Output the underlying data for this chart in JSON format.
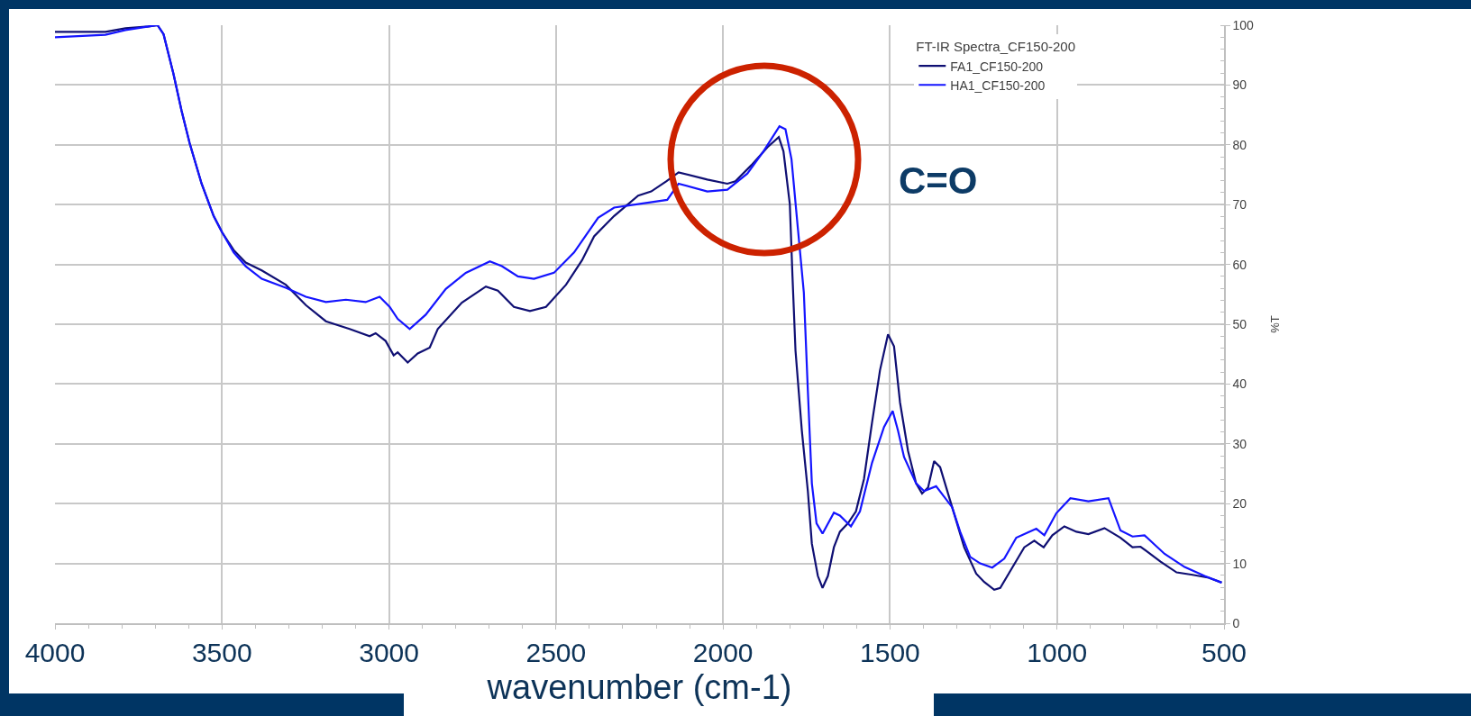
{
  "chart_data": {
    "type": "line",
    "xlabel": "wavenumber (cm-1)",
    "ylabel": "%T",
    "legend_title": "FT-IR Spectra_CF150-200",
    "legend": "top right",
    "grid": true,
    "annotations": [
      "C=O"
    ],
    "xlim": [
      4000,
      500
    ],
    "xticks": [
      4000,
      3500,
      3000,
      2500,
      2000,
      1500,
      1000,
      500
    ],
    "ylim": [
      0,
      100
    ],
    "yticks": [
      0,
      10,
      20,
      30,
      40,
      50,
      60,
      70,
      80,
      90,
      100
    ],
    "series": [
      {
        "name": "FA1_CF150-200",
        "color": "#0f0f73",
        "x": [
          4000,
          3849,
          3789,
          3720,
          3693,
          3675,
          3645,
          3621,
          3597,
          3561,
          3525,
          3500,
          3465,
          3429,
          3381,
          3309,
          3249,
          3189,
          3118,
          3058,
          3040,
          3010,
          2986,
          2974,
          2944,
          2914,
          2878,
          2854,
          2782,
          2710,
          2674,
          2626,
          2578,
          2530,
          2470,
          2422,
          2386,
          2326,
          2254,
          2215,
          2170,
          2133,
          2047,
          1987,
          1963,
          1915,
          1867,
          1833,
          1819,
          1800,
          1792,
          1783,
          1764,
          1746,
          1734,
          1716,
          1702,
          1686,
          1668,
          1650,
          1626,
          1602,
          1578,
          1554,
          1530,
          1506,
          1488,
          1470,
          1446,
          1422,
          1404,
          1386,
          1368,
          1350,
          1314,
          1278,
          1242,
          1218,
          1188,
          1170,
          1134,
          1098,
          1068,
          1056,
          1040,
          1014,
          978,
          942,
          906,
          858,
          810,
          774,
          750,
          690,
          642,
          594,
          546,
          507
        ],
        "values": [
          98.9,
          98.9,
          99.5,
          99.8,
          100,
          98.5,
          91.8,
          85.7,
          80.3,
          73.5,
          68.1,
          65.4,
          62.4,
          60.3,
          59,
          56.6,
          53.2,
          50.5,
          49.2,
          48,
          48.5,
          47.2,
          44.8,
          45.3,
          43.6,
          45.1,
          46.1,
          49.2,
          53.6,
          56.3,
          55.6,
          52.9,
          52.2,
          52.9,
          56.6,
          60.7,
          64.7,
          68.1,
          71.5,
          72.2,
          73.9,
          75.4,
          74.2,
          73.5,
          73.9,
          76.6,
          79.6,
          81.3,
          78.9,
          70.1,
          58,
          45.6,
          32.2,
          22.1,
          13.3,
          7.9,
          5.9,
          7.9,
          12.7,
          15.3,
          16.7,
          18.7,
          24.1,
          33.5,
          42.3,
          48.3,
          46.3,
          36.9,
          28.8,
          23.4,
          21.7,
          22.7,
          27.1,
          26.1,
          19.4,
          12.7,
          8.3,
          6.9,
          5.6,
          5.9,
          9.3,
          12.7,
          13.8,
          13.3,
          12.7,
          14.7,
          16.2,
          15.3,
          14.9,
          15.9,
          14.3,
          12.7,
          12.8,
          10.3,
          8.5,
          8.1,
          7.6,
          6.8
        ]
      },
      {
        "name": "HA1_CF150-200",
        "color": "#1414ff",
        "x": [
          4000,
          3849,
          3789,
          3720,
          3693,
          3675,
          3645,
          3621,
          3597,
          3561,
          3525,
          3500,
          3465,
          3429,
          3381,
          3309,
          3249,
          3189,
          3129,
          3070,
          3028,
          2998,
          2974,
          2938,
          2890,
          2830,
          2770,
          2698,
          2662,
          2614,
          2566,
          2506,
          2446,
          2374,
          2326,
          2254,
          2167,
          2133,
          2047,
          1987,
          1927,
          1879,
          1831,
          1813,
          1795,
          1776,
          1758,
          1746,
          1734,
          1720,
          1702,
          1668,
          1650,
          1617,
          1590,
          1554,
          1518,
          1492,
          1476,
          1458,
          1422,
          1398,
          1362,
          1314,
          1290,
          1260,
          1230,
          1194,
          1158,
          1122,
          1086,
          1062,
          1038,
          1002,
          960,
          906,
          846,
          810,
          774,
          738,
          678,
          618,
          558,
          507
        ],
        "values": [
          98,
          98.4,
          99.2,
          99.8,
          100,
          98.5,
          91.8,
          85.7,
          80.3,
          73.5,
          68.1,
          65.4,
          62,
          59.7,
          57.6,
          56.1,
          54.6,
          53.7,
          54.1,
          53.7,
          54.6,
          52.9,
          50.9,
          49.2,
          51.6,
          55.9,
          58.6,
          60.5,
          59.7,
          58,
          57.6,
          58.6,
          62,
          67.8,
          69.5,
          70.1,
          70.8,
          73.5,
          72.2,
          72.5,
          75.2,
          78.9,
          83.1,
          82.6,
          77.6,
          66.1,
          55.3,
          38.9,
          23.4,
          16.7,
          15,
          18.5,
          18,
          16.2,
          18.7,
          26.8,
          32.8,
          35.5,
          32.2,
          27.8,
          23.4,
          22.1,
          22.9,
          19.4,
          15.3,
          11.1,
          10,
          9.3,
          10.8,
          14.3,
          15.2,
          15.8,
          14.7,
          18.4,
          20.9,
          20.4,
          20.9,
          15.5,
          14.5,
          14.7,
          11.6,
          9.4,
          7.9,
          6.8
        ]
      }
    ]
  }
}
